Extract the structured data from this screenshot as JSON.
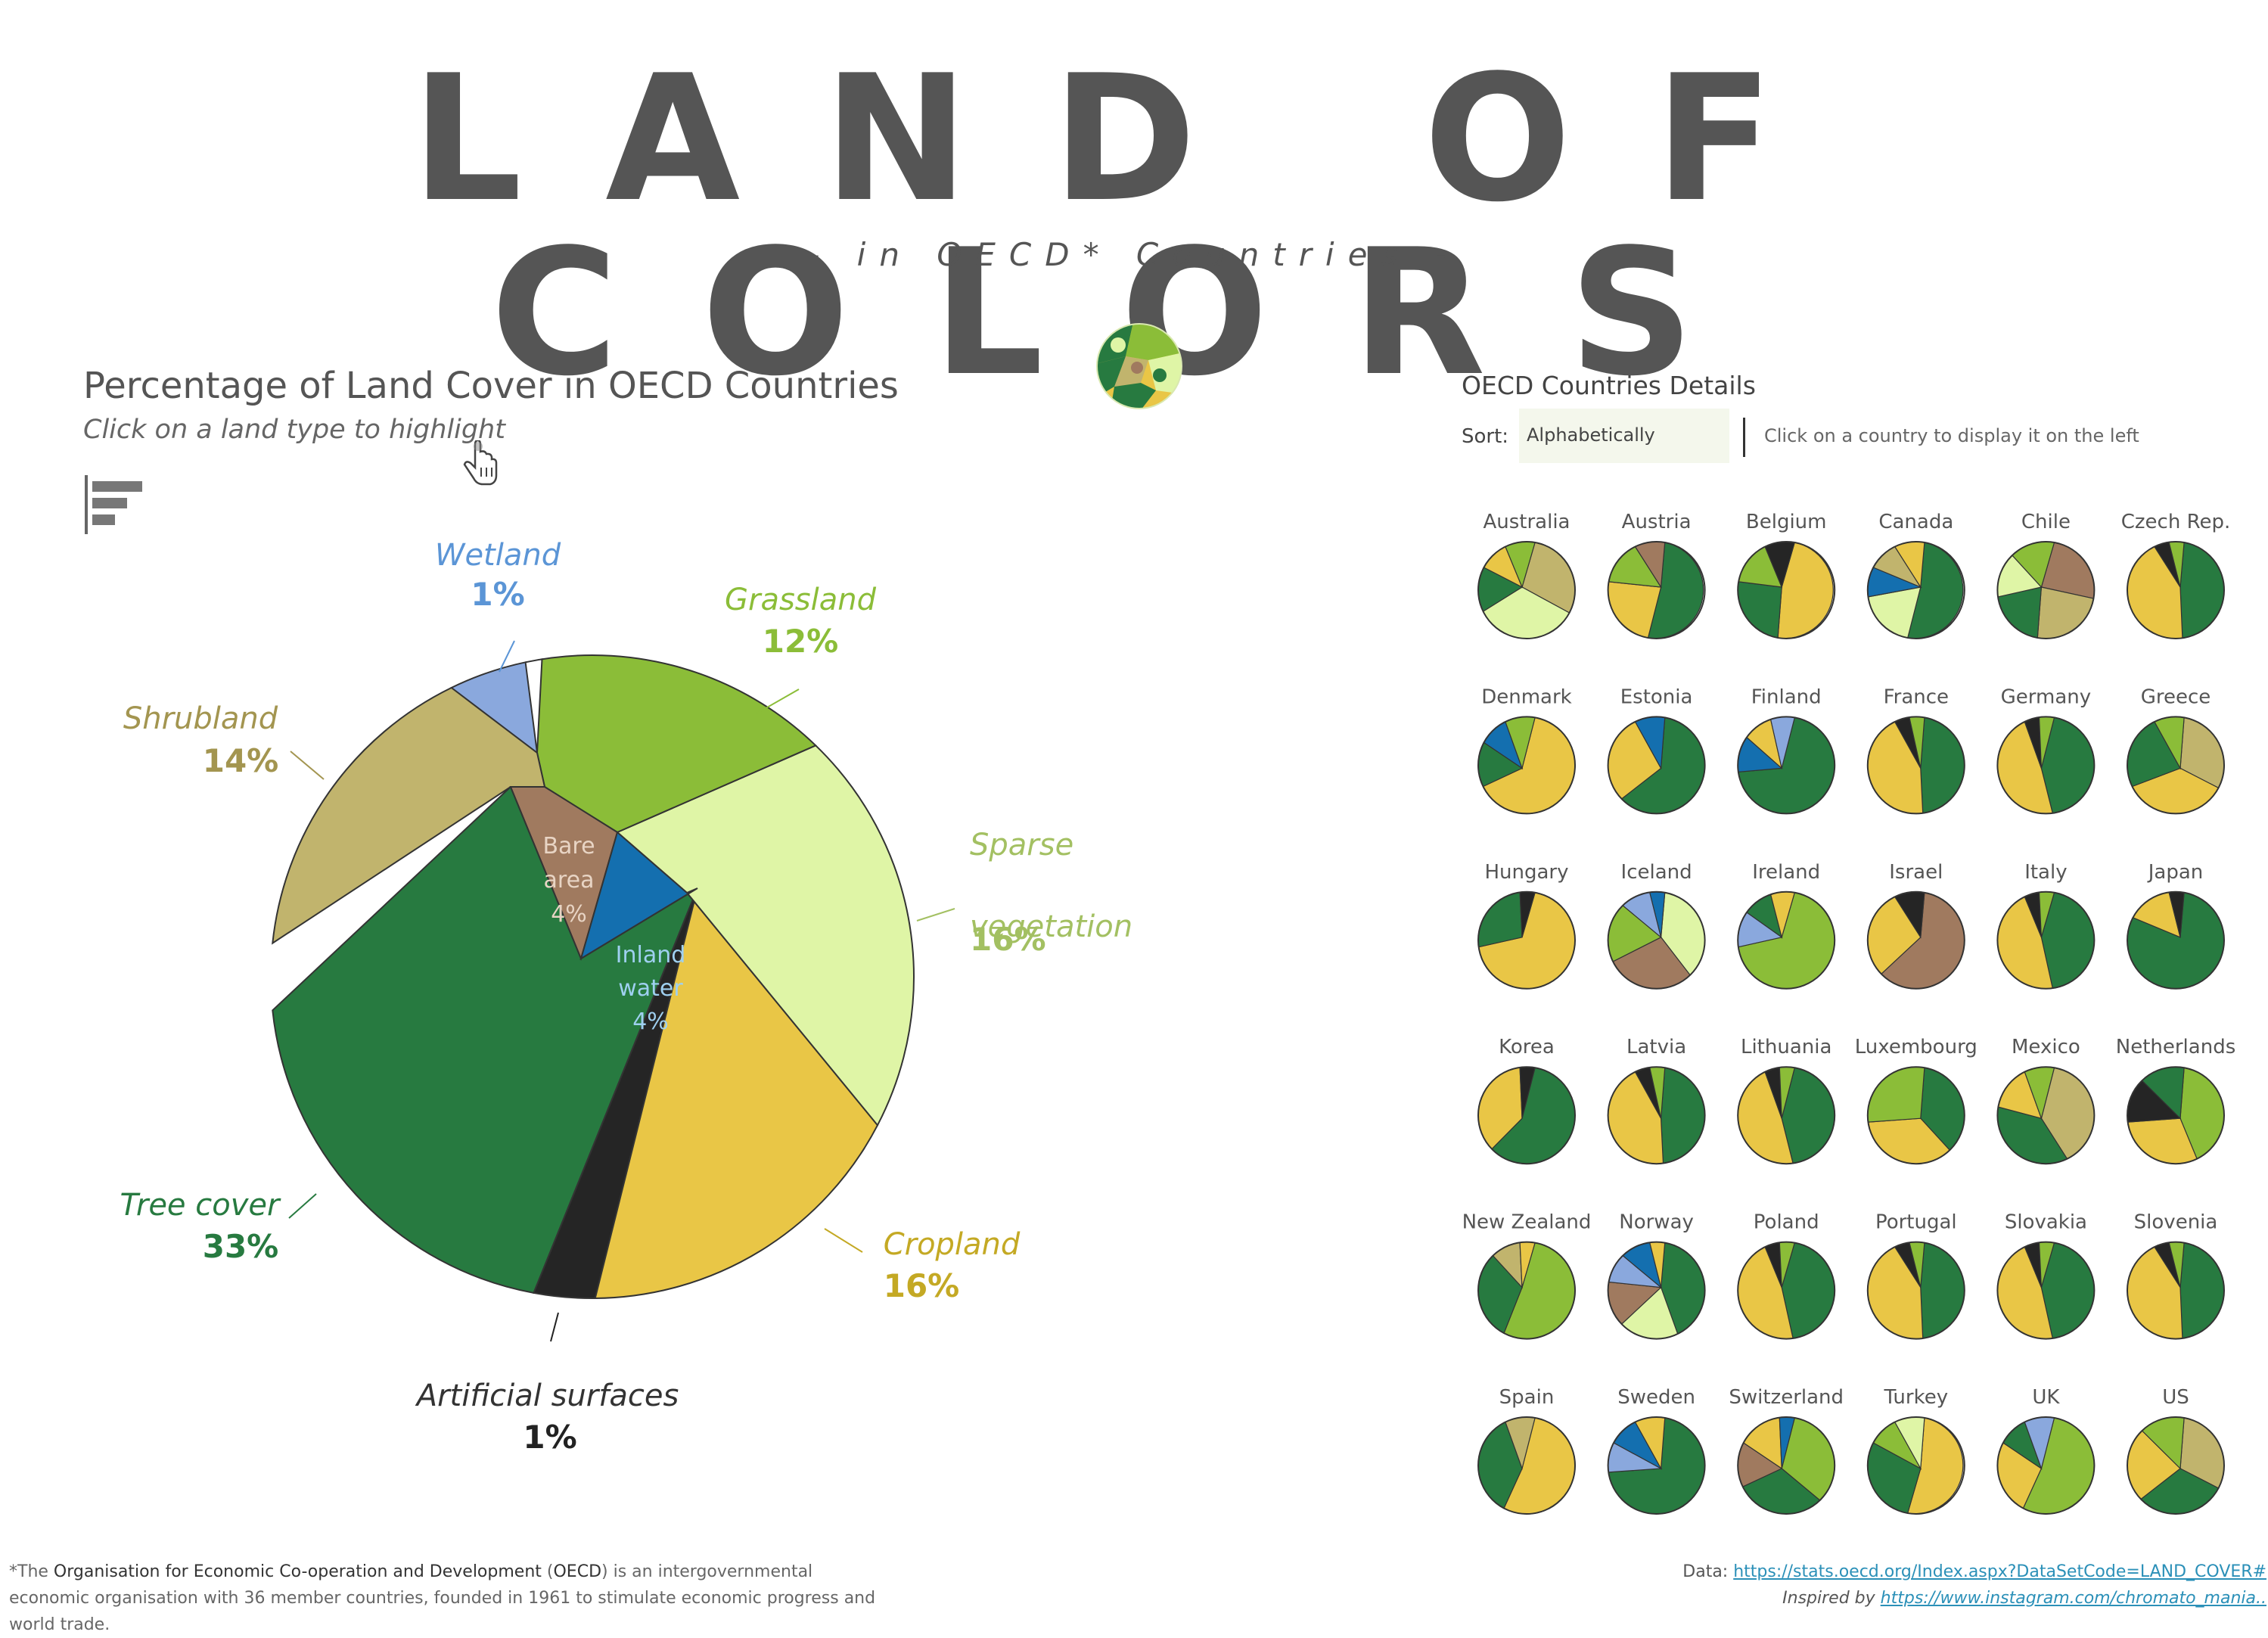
{
  "header": {
    "title": "LAND OF COLORS",
    "subtitle": "- in OECD* Countries -"
  },
  "chart_header": {
    "title": "Percentage of Land Cover in OECD Countries",
    "hint": "Click on a land type to highlight"
  },
  "chart_data": {
    "type": "pie",
    "title": "Percentage of Land Cover in OECD Countries",
    "categories": [
      {
        "name": "Tree cover",
        "value": 33,
        "label": "33%",
        "color": "#277a40"
      },
      {
        "name": "Cropland",
        "value": 16,
        "label": "16%",
        "color": "#e9c646"
      },
      {
        "name": "Sparse vegetation",
        "value": 16,
        "label": "16%",
        "color": "#dff5a6"
      },
      {
        "name": "Grassland",
        "value": 12,
        "label": "12%",
        "color": "#8bbd38"
      },
      {
        "name": "Shrubland",
        "value": 14,
        "label": "14%",
        "color": "#c1b46d"
      },
      {
        "name": "Wetland",
        "value": 1,
        "label": "1%",
        "color": "#8aa8dd"
      },
      {
        "name": "Artificial surfaces",
        "value": 1,
        "label": "1%",
        "color": "#252525"
      },
      {
        "name": "Bare area",
        "value": 4,
        "label": "4%",
        "color": "#a07a5f"
      },
      {
        "name": "Inland water",
        "value": 4,
        "label": "4%",
        "color": "#146faf"
      }
    ]
  },
  "details": {
    "title": "OECD Countries Details",
    "sort_label": "Sort:",
    "sort_value": "Alphabetically",
    "hint": "Click on a country to display it on the left",
    "countries": [
      "Australia",
      "Austria",
      "Belgium",
      "Canada",
      "Chile",
      "Czech Rep.",
      "Denmark",
      "Estonia",
      "Finland",
      "France",
      "Germany",
      "Greece",
      "Hungary",
      "Iceland",
      "Ireland",
      "Israel",
      "Italy",
      "Japan",
      "Korea",
      "Latvia",
      "Lithuania",
      "Luxembourg",
      "Mexico",
      "Netherlands",
      "New Zealand",
      "Norway",
      "Poland",
      "Portugal",
      "Slovakia",
      "Slovenia",
      "Spain",
      "Sweden",
      "Switzerland",
      "Turkey",
      "UK",
      "US"
    ]
  },
  "footer": {
    "note_prefix": "*The ",
    "org_name": "Organisation for Economic Co-operation and Development",
    "org_paren_open": " (",
    "org_abbr": "OECD",
    "note_rest": ") is an intergovernmental economic organisation with 36 member countries, founded in 1961 to stimulate economic progress and world trade.",
    "data_label": "Data: ",
    "data_url": "https://stats.oecd.org/Index.aspx?DataSetCode=LAND_COVER#",
    "inspired_label": "Inspired by ",
    "inspired_url": "https://www.instagram.com/chromato_mania.."
  }
}
